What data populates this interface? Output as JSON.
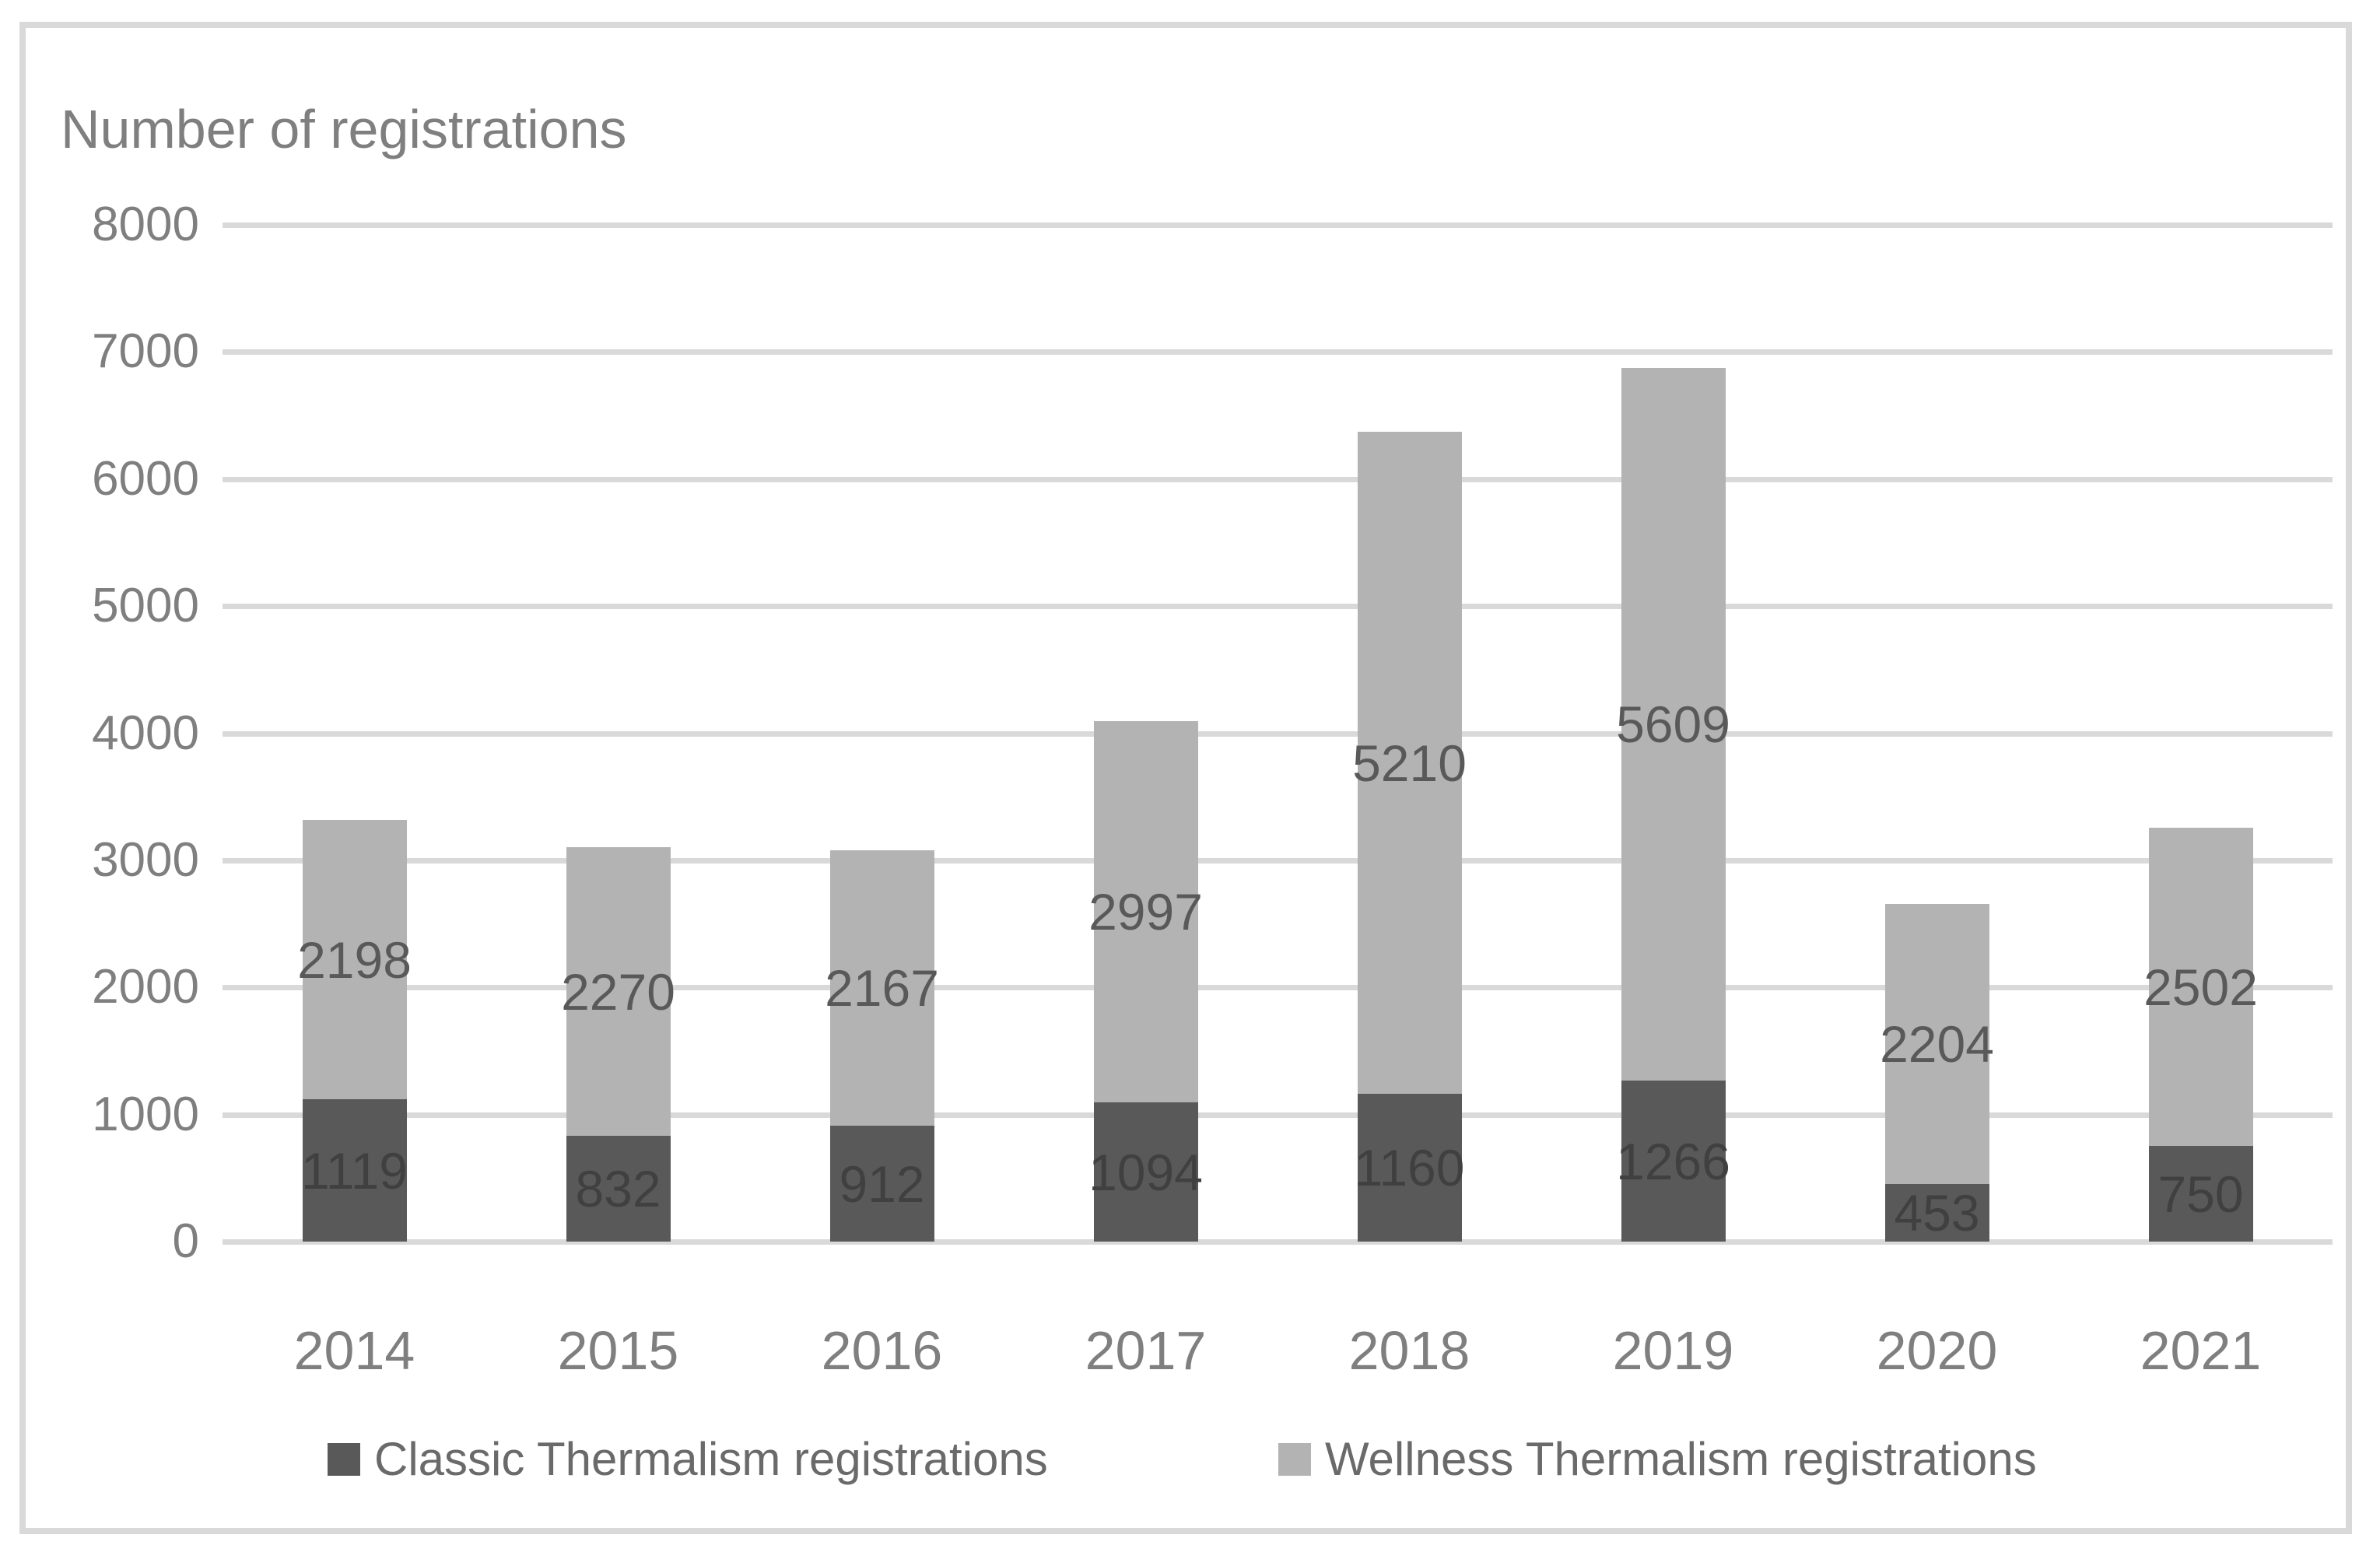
{
  "chart_data": {
    "type": "bar",
    "stacked": true,
    "title": "Number of registrations",
    "categories": [
      "2014",
      "2015",
      "2016",
      "2017",
      "2018",
      "2019",
      "2020",
      "2021"
    ],
    "series": [
      {
        "name": "Classic Thermalism registrations",
        "color": "#595959",
        "label_color": "#404040",
        "values": [
          1119,
          832,
          912,
          1094,
          1160,
          1266,
          453,
          750
        ]
      },
      {
        "name": "Wellness Thermalism registrations",
        "color": "#b3b3b3",
        "label_color": "#595959",
        "values": [
          2198,
          2270,
          2167,
          2997,
          5210,
          5609,
          2204,
          2502
        ]
      }
    ],
    "y_axis": {
      "min": 0,
      "max": 8000,
      "step": 1000,
      "tick_labels": [
        "8000",
        "7000",
        "6000",
        "5000",
        "4000",
        "3000",
        "2000",
        "1000",
        "0"
      ]
    },
    "grid": true,
    "gridline_color": "#d9d9d9",
    "axis_text_color": "#7f7f7f",
    "legend_position": "bottom",
    "data_labels": true
  }
}
